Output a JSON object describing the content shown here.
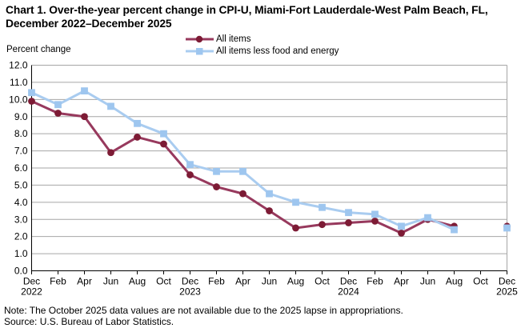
{
  "title": "Chart 1. Over-the-year percent change in CPI-U, Miami-Fort Lauderdale-West Palm Beach, FL, December 2022–December 2025",
  "y_axis_title": "Percent change",
  "note": "Note: The October 2025 data values are not available due to the 2025 lapse in appropriations.",
  "source": "Source: U.S. Bureau of Labor Statistics.",
  "colors": {
    "grid": "#A6A6A6",
    "axis": "#000000",
    "all_items_line": "#97395D",
    "all_items_marker": "#7D1B35",
    "core_line": "#A9CCF0",
    "core_marker": "#9EC6EF"
  },
  "chart_data": {
    "type": "line",
    "title": "Chart 1. Over-the-year percent change in CPI-U, Miami-Fort Lauderdale-West Palm Beach, FL, December 2022–December 2025",
    "ylabel": "Percent change",
    "xlabel": "",
    "ylim": [
      0,
      12
    ],
    "y_tick_step": 1,
    "grid": true,
    "legend_position": "top-center",
    "x": [
      "Dec",
      "Feb",
      "Apr",
      "Jun",
      "Aug",
      "Oct",
      "Dec",
      "Feb",
      "Apr",
      "Jun",
      "Aug",
      "Oct",
      "Dec",
      "Feb",
      "Apr",
      "Jun",
      "Aug",
      "Oct",
      "Dec"
    ],
    "year_labels": [
      {
        "index": 0,
        "label": "2022"
      },
      {
        "index": 6,
        "label": "2023"
      },
      {
        "index": 12,
        "label": "2024"
      },
      {
        "index": 18,
        "label": "2025"
      }
    ],
    "series": [
      {
        "name": "All items",
        "marker": "circle",
        "values": [
          9.9,
          9.2,
          9.0,
          6.9,
          7.8,
          7.4,
          5.6,
          4.9,
          4.5,
          3.5,
          2.5,
          2.7,
          2.8,
          2.9,
          2.2,
          3.0,
          2.6,
          null,
          2.6
        ]
      },
      {
        "name": "All items less food and energy",
        "marker": "square",
        "values": [
          10.4,
          9.7,
          10.5,
          9.6,
          8.6,
          8.0,
          6.2,
          5.8,
          5.8,
          4.5,
          4.0,
          3.7,
          3.4,
          3.3,
          2.6,
          3.1,
          2.4,
          null,
          2.5
        ]
      }
    ],
    "missing_data_note": "October 2025 values are missing (gap in both lines)"
  }
}
